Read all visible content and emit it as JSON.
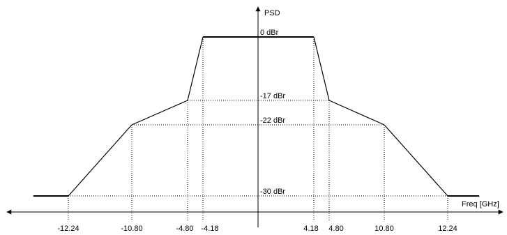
{
  "chart_data": {
    "type": "line",
    "xlabel": "Freq [GHz]",
    "ylabel": "PSD",
    "x_ticks": [
      -12.24,
      -10.8,
      -4.8,
      -4.18,
      4.18,
      4.8,
      10.8,
      12.24
    ],
    "x_tick_labels": [
      "-12.24",
      "-10.80",
      "-4.80",
      "-4.18",
      "4.18",
      "4.80",
      "10.80",
      "12.24"
    ],
    "y_levels": [
      0,
      -17,
      -22,
      -30
    ],
    "y_level_labels": [
      "0 dBr",
      "-17 dBr",
      "-22 dBr",
      "-30 dBr"
    ],
    "xlim": [
      -14.5,
      14.5
    ],
    "ylim": [
      -33,
      6
    ],
    "series": [
      {
        "x": [
          -13.5,
          -12.24,
          -10.8,
          -4.8,
          -4.18,
          4.18,
          4.8,
          10.8,
          12.24,
          13.5
        ],
        "y": [
          -30,
          -30,
          -22,
          -17,
          0,
          0,
          -17,
          -22,
          -30,
          -30
        ]
      }
    ],
    "guides": {
      "horizontal": [
        {
          "y": 0,
          "x_from": -4.18,
          "x_to": 4.18
        },
        {
          "y": -17,
          "x_from": -4.8,
          "x_to": 4.8
        },
        {
          "y": -22,
          "x_from": -10.8,
          "x_to": 10.8
        },
        {
          "y": -30,
          "x_from": -12.24,
          "x_to": 12.24
        }
      ],
      "vertical": [
        {
          "x": -12.24,
          "y_top": -30
        },
        {
          "x": -10.8,
          "y_top": -22
        },
        {
          "x": -4.8,
          "y_top": -17
        },
        {
          "x": -4.18,
          "y_top": 0
        },
        {
          "x": 4.18,
          "y_top": 0
        },
        {
          "x": 4.8,
          "y_top": -17
        },
        {
          "x": 10.8,
          "y_top": -22
        },
        {
          "x": 12.24,
          "y_top": -30
        }
      ]
    },
    "grid": false,
    "legend": "none"
  }
}
